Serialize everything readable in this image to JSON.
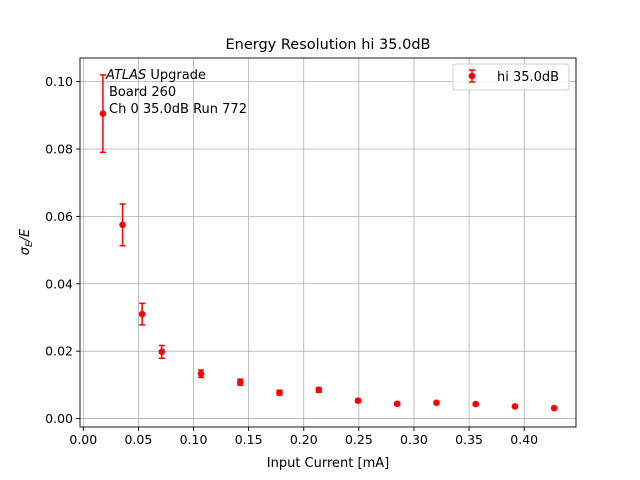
{
  "chart_data": {
    "type": "scatter",
    "title": "Energy Resolution hi 35.0dB",
    "xlabel": "Input Current [mA]",
    "ylabel_main": "σ",
    "ylabel_sub": "E",
    "ylabel_tail": "/E",
    "xlim": [
      -0.003,
      0.447
    ],
    "ylim": [
      -0.0025,
      0.107
    ],
    "xticks": [
      "0.00",
      "0.05",
      "0.10",
      "0.15",
      "0.20",
      "0.25",
      "0.30",
      "0.35",
      "0.40"
    ],
    "yticks": [
      "0.00",
      "0.02",
      "0.04",
      "0.06",
      "0.08",
      "0.10"
    ],
    "grid": true,
    "legend_position": "top-right",
    "annotation": {
      "line1_italic": "ATLAS",
      "line1_rest": " Upgrade",
      "line2": "Board 260",
      "line3": "Ch 0 35.0dB  Run 772"
    },
    "series": [
      {
        "name": "hi 35.0dB",
        "color": "#ff0000",
        "x": [
          0.0178,
          0.0356,
          0.0534,
          0.0712,
          0.1068,
          0.1424,
          0.178,
          0.2136,
          0.2492,
          0.2848,
          0.3204,
          0.356,
          0.3916,
          0.4272
        ],
        "y": [
          0.0905,
          0.0575,
          0.031,
          0.0198,
          0.0133,
          0.0108,
          0.0077,
          0.0085,
          0.0053,
          0.0044,
          0.0047,
          0.0043,
          0.0036,
          0.0031
        ],
        "err": [
          0.0115,
          0.0062,
          0.0032,
          0.0019,
          0.0011,
          0.0009,
          0.0007,
          0.0007,
          0.0005,
          0.0004,
          0.0004,
          0.0004,
          0.0003,
          0.0003
        ]
      }
    ]
  }
}
